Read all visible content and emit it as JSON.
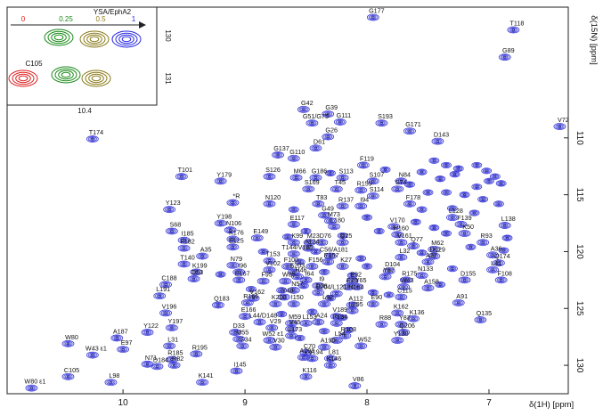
{
  "chart_data": {
    "type": "scatter",
    "subtype": "2D 1H-15N HSQC NMR spectrum, contour peaks with residue assignments",
    "xlabel": "δ(1H) [ppm]",
    "ylabel": "δ(15N) [ppm]",
    "xlim": [
      10.95,
      6.35
    ],
    "ylim": [
      98.5,
      132.5
    ],
    "x_reversed": true,
    "y_reversed": true,
    "x_ticks": [
      10,
      9,
      8,
      7
    ],
    "y_ticks": [
      110,
      115,
      120,
      125,
      130
    ],
    "grid": false,
    "colors": {
      "peak": "#3a3ad8",
      "peak_dark": "#1a1a90",
      "label": "#111111"
    },
    "peaks": [
      {
        "label": "G177",
        "x": 7.95,
        "y": 99.4
      },
      {
        "label": "T118",
        "x": 6.8,
        "y": 100.5
      },
      {
        "label": "G89",
        "x": 6.87,
        "y": 102.9
      },
      {
        "label": "V72",
        "x": 6.42,
        "y": 109.0
      },
      {
        "label": "G42",
        "x": 8.52,
        "y": 107.5
      },
      {
        "label": "G39",
        "x": 8.32,
        "y": 107.9
      },
      {
        "label": "G51/G75",
        "x": 8.45,
        "y": 108.7
      },
      {
        "label": "G111",
        "x": 8.22,
        "y": 108.6
      },
      {
        "label": "G26",
        "x": 8.32,
        "y": 109.9
      },
      {
        "label": "D61",
        "x": 8.42,
        "y": 110.9
      },
      {
        "label": "S193",
        "x": 7.88,
        "y": 108.7
      },
      {
        "label": "G171",
        "x": 7.65,
        "y": 109.4
      },
      {
        "label": "D143",
        "x": 7.42,
        "y": 110.3
      },
      {
        "label": "T174",
        "x": 10.25,
        "y": 110.1
      },
      {
        "label": "G137",
        "x": 8.73,
        "y": 111.5
      },
      {
        "label": "G110",
        "x": 8.6,
        "y": 111.8
      },
      {
        "label": "F119",
        "x": 8.03,
        "y": 112.4
      },
      {
        "label": "T101",
        "x": 9.52,
        "y": 113.4
      },
      {
        "label": "S126",
        "x": 8.8,
        "y": 113.4
      },
      {
        "label": "M66",
        "x": 8.58,
        "y": 113.5
      },
      {
        "label": "G186",
        "x": 8.42,
        "y": 113.5
      },
      {
        "label": "S113",
        "x": 8.2,
        "y": 113.5
      },
      {
        "label": "Y179",
        "x": 9.2,
        "y": 113.8
      },
      {
        "label": "S107",
        "x": 7.95,
        "y": 113.8
      },
      {
        "label": "N84",
        "x": 7.72,
        "y": 113.8
      },
      {
        "label": "S169",
        "x": 8.48,
        "y": 114.5
      },
      {
        "label": "T45",
        "x": 8.25,
        "y": 114.5
      },
      {
        "label": "R159",
        "x": 8.05,
        "y": 114.6
      },
      {
        "label": "S74",
        "x": 7.75,
        "y": 114.5
      },
      {
        "label": "S114",
        "x": 7.95,
        "y": 115.1
      },
      {
        "label": "*R",
        "x": 9.1,
        "y": 115.7
      },
      {
        "label": "N120",
        "x": 8.8,
        "y": 115.8
      },
      {
        "label": "T83",
        "x": 8.4,
        "y": 115.8
      },
      {
        "label": "R137",
        "x": 8.2,
        "y": 116.0
      },
      {
        "label": "I94",
        "x": 8.05,
        "y": 116.0
      },
      {
        "label": "F178",
        "x": 7.65,
        "y": 115.8
      },
      {
        "label": "Y123",
        "x": 9.62,
        "y": 116.3
      },
      {
        "label": "G49",
        "x": 8.35,
        "y": 116.8
      },
      {
        "label": "M73",
        "x": 8.3,
        "y": 117.3
      },
      {
        "label": "E117",
        "x": 8.6,
        "y": 117.6
      },
      {
        "label": "L180",
        "x": 8.27,
        "y": 117.8
      },
      {
        "label": "Y198",
        "x": 9.2,
        "y": 117.5
      },
      {
        "label": "L128",
        "x": 7.3,
        "y": 117.0
      },
      {
        "label": "L138",
        "x": 6.87,
        "y": 117.7
      },
      {
        "label": "F139",
        "x": 7.23,
        "y": 117.6
      },
      {
        "label": "V170",
        "x": 7.78,
        "y": 117.8
      },
      {
        "label": "S68",
        "x": 9.6,
        "y": 118.2
      },
      {
        "label": "N106",
        "x": 9.12,
        "y": 118.1
      },
      {
        "label": "E149",
        "x": 8.9,
        "y": 118.8
      },
      {
        "label": "H160",
        "x": 7.75,
        "y": 118.5
      },
      {
        "label": "K50",
        "x": 7.2,
        "y": 118.4
      },
      {
        "label": "I185",
        "x": 9.5,
        "y": 119.0
      },
      {
        "label": "K176",
        "x": 9.1,
        "y": 118.9
      },
      {
        "label": "K99",
        "x": 8.6,
        "y": 119.2
      },
      {
        "label": "M23",
        "x": 8.47,
        "y": 119.2
      },
      {
        "label": "D76",
        "x": 8.37,
        "y": 119.2
      },
      {
        "label": "Q25",
        "x": 8.2,
        "y": 119.2
      },
      {
        "label": "V161",
        "x": 7.72,
        "y": 119.2
      },
      {
        "label": "R93",
        "x": 7.05,
        "y": 119.2
      },
      {
        "label": "F182",
        "x": 9.5,
        "y": 119.7
      },
      {
        "label": "E125",
        "x": 9.1,
        "y": 119.6
      },
      {
        "label": "A124",
        "x": 8.48,
        "y": 119.7
      },
      {
        "label": "Q77",
        "x": 7.62,
        "y": 119.5
      },
      {
        "label": "M62",
        "x": 7.45,
        "y": 119.8
      },
      {
        "label": "A35",
        "x": 9.35,
        "y": 120.4
      },
      {
        "label": "T144/V165",
        "x": 8.6,
        "y": 120.2
      },
      {
        "label": "C56/A181",
        "x": 8.3,
        "y": 120.4
      },
      {
        "label": "L32",
        "x": 7.72,
        "y": 120.5
      },
      {
        "label": "D129",
        "x": 7.45,
        "y": 120.4
      },
      {
        "label": "A36",
        "x": 6.97,
        "y": 120.3
      },
      {
        "label": "T153",
        "x": 8.8,
        "y": 120.8
      },
      {
        "label": "E157",
        "x": 8.32,
        "y": 120.9
      },
      {
        "label": "A37",
        "x": 7.5,
        "y": 120.9
      },
      {
        "label": "T140",
        "x": 9.5,
        "y": 121.1
      },
      {
        "label": "N79",
        "x": 9.1,
        "y": 121.2
      },
      {
        "label": "F100",
        "x": 8.65,
        "y": 121.3
      },
      {
        "label": "F156",
        "x": 8.45,
        "y": 121.3
      },
      {
        "label": "K27",
        "x": 8.2,
        "y": 121.3
      },
      {
        "label": "Q174",
        "x": 6.92,
        "y": 121.0
      },
      {
        "label": "K199",
        "x": 9.4,
        "y": 121.8
      },
      {
        "label": "I96",
        "x": 9.05,
        "y": 121.8
      },
      {
        "label": "V102",
        "x": 8.8,
        "y": 121.6
      },
      {
        "label": "E203",
        "x": 8.6,
        "y": 121.8
      },
      {
        "label": "D104",
        "x": 7.82,
        "y": 121.7
      },
      {
        "label": "L41",
        "x": 6.97,
        "y": 121.6
      },
      {
        "label": "H46",
        "x": 8.57,
        "y": 122.2
      },
      {
        "label": "Y67",
        "x": 7.85,
        "y": 122.2
      },
      {
        "label": "N133",
        "x": 7.55,
        "y": 122.1
      },
      {
        "label": "D53",
        "x": 9.42,
        "y": 122.4
      },
      {
        "label": "E167",
        "x": 9.05,
        "y": 122.5
      },
      {
        "label": "F95",
        "x": 8.85,
        "y": 122.6
      },
      {
        "label": "W85",
        "x": 8.67,
        "y": 122.6
      },
      {
        "label": "I64",
        "x": 8.5,
        "y": 122.5
      },
      {
        "label": "E92",
        "x": 8.12,
        "y": 122.6
      },
      {
        "label": "R175",
        "x": 7.68,
        "y": 122.5
      },
      {
        "label": "D155",
        "x": 7.2,
        "y": 122.5
      },
      {
        "label": "F108",
        "x": 6.9,
        "y": 122.5
      },
      {
        "label": "C188",
        "x": 9.65,
        "y": 122.9
      },
      {
        "label": "I9",
        "x": 8.4,
        "y": 123.0
      },
      {
        "label": "E70",
        "x": 8.15,
        "y": 123.1
      },
      {
        "label": "Y65",
        "x": 8.08,
        "y": 123.1
      },
      {
        "label": "N57",
        "x": 8.6,
        "y": 123.4
      },
      {
        "label": "D78",
        "x": 8.4,
        "y": 123.6
      },
      {
        "label": "L204/L121/N164",
        "x": 8.25,
        "y": 123.7
      },
      {
        "label": "W43",
        "x": 7.7,
        "y": 123.1
      },
      {
        "label": "A158",
        "x": 7.5,
        "y": 123.2
      },
      {
        "label": "L191",
        "x": 9.7,
        "y": 123.9
      },
      {
        "label": "V162",
        "x": 8.93,
        "y": 124.1
      },
      {
        "label": "Y48",
        "x": 8.68,
        "y": 124.0
      },
      {
        "label": "C115",
        "x": 7.72,
        "y": 124.0
      },
      {
        "label": "A91",
        "x": 7.25,
        "y": 124.5
      },
      {
        "label": "Q183",
        "x": 9.22,
        "y": 124.7
      },
      {
        "label": "R166",
        "x": 8.98,
        "y": 124.5
      },
      {
        "label": "K200",
        "x": 8.75,
        "y": 124.6
      },
      {
        "label": "I150",
        "x": 8.6,
        "y": 124.6
      },
      {
        "label": "L92",
        "x": 8.35,
        "y": 124.6
      },
      {
        "label": "E90",
        "x": 7.95,
        "y": 124.6
      },
      {
        "label": "A112",
        "x": 8.12,
        "y": 124.7
      },
      {
        "label": "L205",
        "x": 8.12,
        "y": 125.2
      },
      {
        "label": "V196",
        "x": 9.65,
        "y": 125.4
      },
      {
        "label": "K162",
        "x": 7.75,
        "y": 125.4
      },
      {
        "label": "E166",
        "x": 9.0,
        "y": 125.7
      },
      {
        "label": "V189",
        "x": 8.25,
        "y": 125.7
      },
      {
        "label": "K136",
        "x": 7.62,
        "y": 125.9
      },
      {
        "label": "L44/D148",
        "x": 8.88,
        "y": 126.2
      },
      {
        "label": "M59",
        "x": 8.62,
        "y": 126.3
      },
      {
        "label": "L153",
        "x": 8.5,
        "y": 126.3
      },
      {
        "label": "A24",
        "x": 8.4,
        "y": 126.2
      },
      {
        "label": "F134",
        "x": 8.25,
        "y": 126.3
      },
      {
        "label": "R88",
        "x": 7.88,
        "y": 126.4
      },
      {
        "label": "Y87",
        "x": 7.72,
        "y": 126.4
      },
      {
        "label": "Q135",
        "x": 7.07,
        "y": 126.0
      },
      {
        "label": "Y197",
        "x": 9.6,
        "y": 126.7
      },
      {
        "label": "V29",
        "x": 8.78,
        "y": 126.7
      },
      {
        "label": "V45",
        "x": 8.62,
        "y": 126.8
      },
      {
        "label": "Q206",
        "x": 7.7,
        "y": 127.1
      },
      {
        "label": "Y122",
        "x": 9.8,
        "y": 127.1
      },
      {
        "label": "D33",
        "x": 9.08,
        "y": 127.1
      },
      {
        "label": "L173",
        "x": 8.62,
        "y": 127.4
      },
      {
        "label": "R103",
        "x": 8.18,
        "y": 127.4
      },
      {
        "label": "A187",
        "x": 10.05,
        "y": 127.6
      },
      {
        "label": "M55",
        "x": 9.05,
        "y": 127.7
      },
      {
        "label": "W52 ε1",
        "x": 8.8,
        "y": 127.8
      },
      {
        "label": "L54",
        "x": 8.25,
        "y": 127.8
      },
      {
        "label": "Y130",
        "x": 7.75,
        "y": 127.8
      },
      {
        "label": "W80",
        "x": 10.45,
        "y": 128.1
      },
      {
        "label": "L31",
        "x": 9.62,
        "y": 128.3
      },
      {
        "label": "F34",
        "x": 9.02,
        "y": 128.3
      },
      {
        "label": "V30",
        "x": 8.75,
        "y": 128.4
      },
      {
        "label": "A190",
        "x": 8.35,
        "y": 128.4
      },
      {
        "label": "W52",
        "x": 8.05,
        "y": 128.3
      },
      {
        "label": "E97",
        "x": 10.0,
        "y": 128.6
      },
      {
        "label": "C70",
        "x": 8.5,
        "y": 128.9
      },
      {
        "label": "R195",
        "x": 9.4,
        "y": 129.0
      },
      {
        "label": "W43 ε1",
        "x": 10.25,
        "y": 129.1
      },
      {
        "label": "A201",
        "x": 8.52,
        "y": 129.3
      },
      {
        "label": "V194",
        "x": 8.45,
        "y": 129.4
      },
      {
        "label": "L81",
        "x": 8.3,
        "y": 129.4
      },
      {
        "label": "R185",
        "x": 9.6,
        "y": 129.5
      },
      {
        "label": "N71",
        "x": 9.8,
        "y": 129.9
      },
      {
        "label": "D184",
        "x": 9.72,
        "y": 130.1
      },
      {
        "label": "R82",
        "x": 9.58,
        "y": 130.0
      },
      {
        "label": "K146",
        "x": 8.3,
        "y": 130.0
      },
      {
        "label": "I145",
        "x": 9.07,
        "y": 130.5
      },
      {
        "label": "K116",
        "x": 8.5,
        "y": 131.0
      },
      {
        "label": "C105",
        "x": 10.45,
        "y": 131.0
      },
      {
        "label": "K141",
        "x": 9.35,
        "y": 131.5
      },
      {
        "label": "L98",
        "x": 10.1,
        "y": 131.5
      },
      {
        "label": "V86",
        "x": 8.1,
        "y": 131.8
      },
      {
        "label": "W80 ε1",
        "x": 10.75,
        "y": 132.0
      }
    ],
    "unlabeled_peaks": [
      [
        7.45,
        112.0
      ],
      [
        7.35,
        112.4
      ],
      [
        7.25,
        112.7
      ],
      [
        7.1,
        112.4
      ],
      [
        7.02,
        112.9
      ],
      [
        6.95,
        113.4
      ],
      [
        7.55,
        113.0
      ],
      [
        7.4,
        113.6
      ],
      [
        7.28,
        113.2
      ],
      [
        7.65,
        114.1
      ],
      [
        7.5,
        114.8
      ],
      [
        7.1,
        114.3
      ],
      [
        7.0,
        113.8
      ],
      [
        6.9,
        114.0
      ],
      [
        7.2,
        115.0
      ],
      [
        7.05,
        115.4
      ],
      [
        6.92,
        115.8
      ],
      [
        7.3,
        116.2
      ],
      [
        7.12,
        116.6
      ],
      [
        7.6,
        117.4
      ],
      [
        7.45,
        117.9
      ],
      [
        7.35,
        118.4
      ],
      [
        6.85,
        118.8
      ],
      [
        7.15,
        119.6
      ],
      [
        7.55,
        120.1
      ],
      [
        6.88,
        119.9
      ],
      [
        7.3,
        121.5
      ],
      [
        7.4,
        122.9
      ],
      [
        8.5,
        118.2
      ],
      [
        8.2,
        118.6
      ],
      [
        8.65,
        118.7
      ],
      [
        8.35,
        121.8
      ],
      [
        8.55,
        120.9
      ],
      [
        8.42,
        120.0
      ],
      [
        8.12,
        122.1
      ],
      [
        8.05,
        120.6
      ],
      [
        8.7,
        123.4
      ],
      [
        8.52,
        123.0
      ],
      [
        8.3,
        124.1
      ],
      [
        8.45,
        125.3
      ],
      [
        8.2,
        125.8
      ],
      [
        8.35,
        127.0
      ],
      [
        8.55,
        127.6
      ],
      [
        8.15,
        126.9
      ],
      [
        8.7,
        125.5
      ],
      [
        8.0,
        121.3
      ],
      [
        8.3,
        113.1
      ],
      [
        7.85,
        112.8
      ],
      [
        8.6,
        116.3
      ],
      [
        8.0,
        117.0
      ],
      [
        7.9,
        118.2
      ],
      [
        7.55,
        116.3
      ],
      [
        7.35,
        114.8
      ],
      [
        7.82,
        123.8
      ],
      [
        7.95,
        123.6
      ],
      [
        8.85,
        120.0
      ],
      [
        8.95,
        123.3
      ],
      [
        9.2,
        122.0
      ]
    ],
    "inset": {
      "legend_title": "YSA/EphA2",
      "ratio_labels": [
        "0",
        "0.25",
        "0.5",
        "1"
      ],
      "ratio_colors": [
        "#e02020",
        "#1a8a1a",
        "#8a7a1a",
        "#2a2ae0"
      ],
      "peak_label": "C105",
      "x_tick": "10.4",
      "y_ticks": [
        "130",
        "131"
      ]
    }
  }
}
